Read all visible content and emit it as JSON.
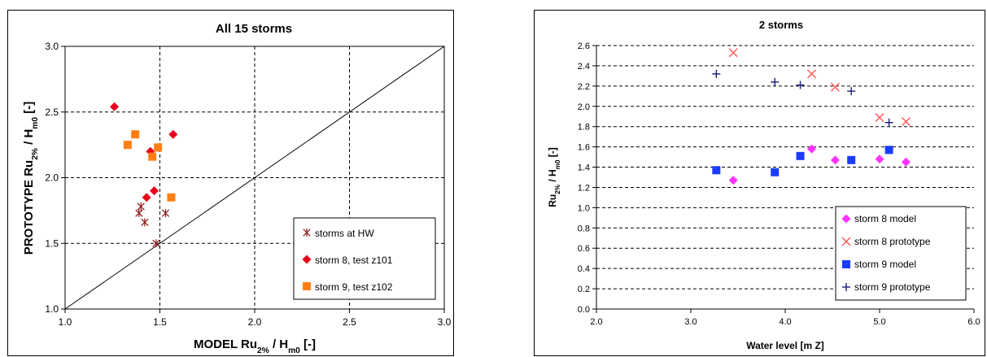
{
  "chart_data": [
    {
      "type": "scatter",
      "title": "All 15 storms",
      "xlabel": {
        "main": "MODEL  Ru",
        "sub": "2%",
        "tail": " / H",
        "sub2": "m0",
        "end": " [-]"
      },
      "ylabel": {
        "main": "PROTOTYPE  Ru",
        "sub": "2%",
        "tail": " / H",
        "sub2": "m0",
        "end": " [-]"
      },
      "xlim": [
        1.0,
        3.0
      ],
      "ylim": [
        1.0,
        3.0
      ],
      "x_ticks": [
        "1.0",
        "1.5",
        "2.0",
        "2.5",
        "3.0"
      ],
      "y_ticks": [
        "1.0",
        "1.5",
        "2.0",
        "2.5",
        "3.0"
      ],
      "grid": "dashed",
      "legend_position": "bottom-right",
      "reference_line": [
        [
          1.0,
          1.0
        ],
        [
          3.0,
          3.0
        ]
      ],
      "series": [
        {
          "name": "storms at HW",
          "marker": "asterisk",
          "color": "#8b1a1a",
          "points": [
            [
              1.48,
              1.5
            ],
            [
              1.42,
              1.66
            ],
            [
              1.53,
              1.73
            ],
            [
              1.39,
              1.73
            ],
            [
              1.4,
              1.78
            ]
          ]
        },
        {
          "name": "storm 8, test z101",
          "marker": "diamond",
          "color": "#e8001c",
          "points": [
            [
              1.26,
              2.54
            ],
            [
              1.57,
              2.33
            ],
            [
              1.45,
              2.2
            ],
            [
              1.47,
              1.9
            ],
            [
              1.43,
              1.85
            ]
          ]
        },
        {
          "name": "storm 9, test z102",
          "marker": "square",
          "color": "#ff7f14",
          "points": [
            [
              1.37,
              2.33
            ],
            [
              1.33,
              2.25
            ],
            [
              1.49,
              2.23
            ],
            [
              1.46,
              2.16
            ],
            [
              1.56,
              1.85
            ]
          ]
        }
      ]
    },
    {
      "type": "scatter",
      "title": "2 storms",
      "xlabel": "Water level [m Z]",
      "ylabel": {
        "main": "Ru",
        "sub": "2%",
        "tail": " / H",
        "sub2": "m0",
        "end": " [-]"
      },
      "xlim": [
        2.0,
        6.0
      ],
      "ylim": [
        0.0,
        2.6
      ],
      "x_ticks": [
        "2.0",
        "3.0",
        "4.0",
        "5.0",
        "6.0"
      ],
      "y_ticks": [
        "0.0",
        "0.2",
        "0.4",
        "0.6",
        "0.8",
        "1.0",
        "1.2",
        "1.4",
        "1.6",
        "1.8",
        "2.0",
        "2.2",
        "2.4",
        "2.6"
      ],
      "grid": "dashed horizontal",
      "legend_position": "bottom-right",
      "series": [
        {
          "name": "storm 8 model",
          "marker": "diamond",
          "color": "#ff33ff",
          "points": [
            [
              3.45,
              1.27
            ],
            [
              4.28,
              1.58
            ],
            [
              4.53,
              1.47
            ],
            [
              5.0,
              1.48
            ],
            [
              5.28,
              1.45
            ]
          ]
        },
        {
          "name": "storm 8 prototype",
          "marker": "x",
          "color": "#ff5555",
          "points": [
            [
              3.45,
              2.53
            ],
            [
              4.28,
              2.32
            ],
            [
              4.53,
              2.19
            ],
            [
              5.0,
              1.89
            ],
            [
              5.28,
              1.85
            ]
          ]
        },
        {
          "name": "storm 9 model",
          "marker": "square",
          "color": "#1a3cff",
          "points": [
            [
              3.27,
              1.37
            ],
            [
              3.89,
              1.35
            ],
            [
              4.16,
              1.51
            ],
            [
              4.7,
              1.47
            ],
            [
              5.1,
              1.57
            ]
          ]
        },
        {
          "name": "storm 9 prototype",
          "marker": "plus",
          "color": "#1c1c7a",
          "points": [
            [
              3.27,
              2.32
            ],
            [
              3.89,
              2.24
            ],
            [
              4.16,
              2.21
            ],
            [
              4.7,
              2.15
            ],
            [
              5.1,
              1.84
            ]
          ]
        }
      ]
    }
  ]
}
